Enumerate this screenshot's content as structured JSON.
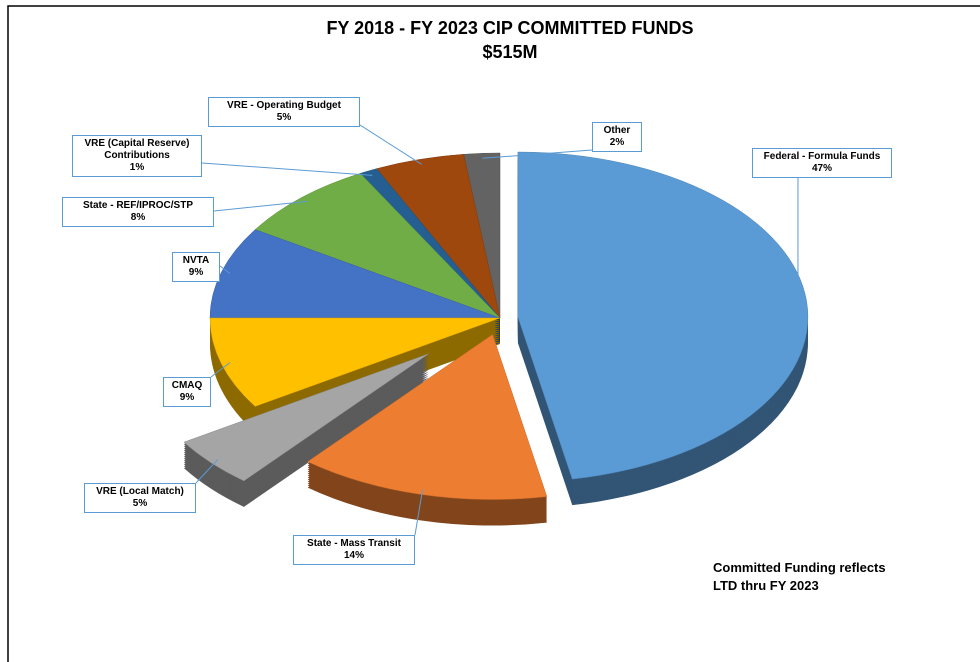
{
  "chart_data": {
    "type": "pie",
    "title": [
      "FY 2018 - FY 2023 CIP COMMITTED FUNDS",
      "$515M"
    ],
    "categories": [
      "Federal - Formula Funds",
      "State - Mass Transit",
      "VRE (Local Match)",
      "CMAQ",
      "NVTA",
      "State - REF/IPROC/STP",
      "VRE (Capital Reserve) Contributions",
      "VRE - Operating Budget",
      "Other"
    ],
    "values": [
      47,
      14,
      5,
      9,
      9,
      8,
      1,
      5,
      2
    ],
    "value_labels": [
      "47%",
      "14%",
      "5%",
      "9%",
      "9%",
      "8%",
      "1%",
      "5%",
      "2%"
    ],
    "colors": [
      "#5b9bd5",
      "#ed7d31",
      "#a5a5a5",
      "#ffc000",
      "#4472c4",
      "#70ad47",
      "#255e91",
      "#9e480e",
      "#636363"
    ],
    "note": [
      "Committed Funding reflects",
      "LTD thru FY 2023"
    ]
  }
}
